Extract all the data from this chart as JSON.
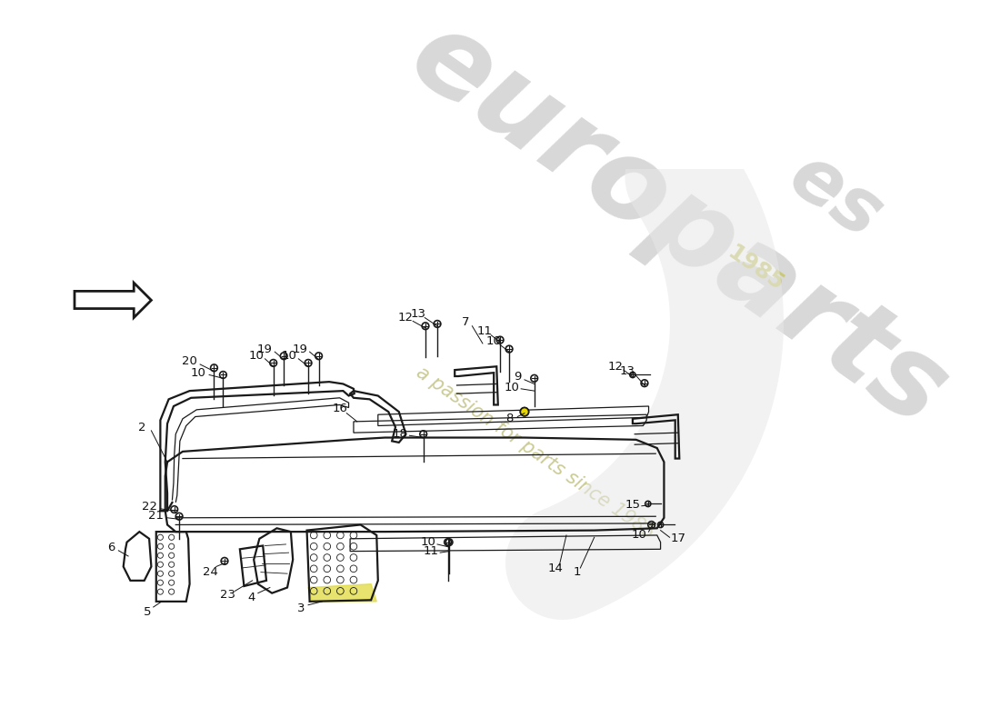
{
  "bg_color": "#ffffff",
  "line_color": "#1a1a1a",
  "watermark_text1": "europarts",
  "watermark_text2": "a passion for parts since 1985",
  "watermark_color": "#d8d8d8",
  "watermark_color2": "#c8c890",
  "lw_main": 1.6,
  "lw_thin": 0.9,
  "lw_detail": 0.6
}
